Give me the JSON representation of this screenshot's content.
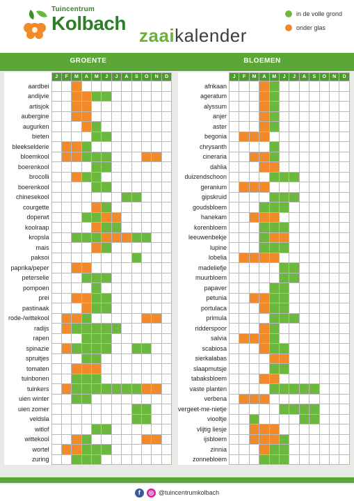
{
  "brand": {
    "small": "Tuincentrum",
    "big": "Kolbach"
  },
  "title": {
    "bold": "zaai",
    "rest": "kalender"
  },
  "legend": [
    {
      "label": "in de volle grond",
      "color": "#6cb83f"
    },
    {
      "label": "onder glas",
      "color": "#f08a2a"
    }
  ],
  "sections": {
    "left_title": "GROENTE",
    "right_title": "BLOEMEN"
  },
  "months": [
    "J",
    "F",
    "M",
    "A",
    "M",
    "J",
    "J",
    "A",
    "S",
    "O",
    "N",
    "D"
  ],
  "groente": [
    {
      "name": "aardbei",
      "cells": "..o........."
    },
    {
      "name": "andijvie",
      "cells": "..oogg......"
    },
    {
      "name": "artisjok",
      "cells": "..oo........"
    },
    {
      "name": "aubergine",
      "cells": "..oo........"
    },
    {
      "name": "augurken",
      "cells": "...og......."
    },
    {
      "name": "bieten",
      "cells": "....gg......"
    },
    {
      "name": "bleekselderie",
      "cells": ".oog........"
    },
    {
      "name": "bloemkool",
      "cells": ".ooggg...oo."
    },
    {
      "name": "boerenkool",
      "cells": "....gg......"
    },
    {
      "name": "brocolli",
      "cells": "..ogg......."
    },
    {
      "name": "boerenkool",
      "cells": "....gg......"
    },
    {
      "name": "chinesekool",
      "cells": ".......gg..."
    },
    {
      "name": "courgette",
      "cells": "....og......"
    },
    {
      "name": "doperwt",
      "cells": "...ggoo....."
    },
    {
      "name": "koolraap",
      "cells": "....ogg....."
    },
    {
      "name": "kropsla",
      "cells": "..gggooogg.."
    },
    {
      "name": "mais",
      "cells": "....og......"
    },
    {
      "name": "paksoi",
      "cells": "........g..."
    },
    {
      "name": "paprika/peper",
      "cells": "..oo........"
    },
    {
      "name": "peterselie",
      "cells": "...ggg......"
    },
    {
      "name": "pompoen",
      "cells": "....g......."
    },
    {
      "name": "prei",
      "cells": "..oogg......"
    },
    {
      "name": "pastinaak",
      "cells": "...ogg......"
    },
    {
      "name": "rode-/wittekool",
      "cells": ".oog.....oo."
    },
    {
      "name": "radijs",
      "cells": ".oggggg....."
    },
    {
      "name": "rapen",
      "cells": "...ggg......"
    },
    {
      "name": "spinazie",
      "cells": ".ogggg..gg.."
    },
    {
      "name": "spruitjes",
      "cells": "...gg......."
    },
    {
      "name": "tomaten",
      "cells": "..ooo......."
    },
    {
      "name": "tuinbonen",
      "cells": "..ggg......."
    },
    {
      "name": "tuinkers",
      "cells": ".ogggggggoo."
    },
    {
      "name": "uien winter",
      "cells": "..gg........"
    },
    {
      "name": "uien zomer",
      "cells": "........gg.."
    },
    {
      "name": "veldsla",
      "cells": "........gg.."
    },
    {
      "name": "witlof",
      "cells": "....gg......"
    },
    {
      "name": "wittekool",
      "cells": "..og.....oo."
    },
    {
      "name": "wortel",
      "cells": ".ooggg......"
    },
    {
      "name": "zuring",
      "cells": "..ggg......."
    }
  ],
  "bloemen": [
    {
      "name": "afrikaan",
      "cells": "...og......."
    },
    {
      "name": "ageratum",
      "cells": "...og......."
    },
    {
      "name": "alyssum",
      "cells": "...og......."
    },
    {
      "name": "anjer",
      "cells": "...og......."
    },
    {
      "name": "aster",
      "cells": "...og......."
    },
    {
      "name": "begonia",
      "cells": ".ooo........"
    },
    {
      "name": "chrysanth",
      "cells": "....g......."
    },
    {
      "name": "cineraria",
      "cells": "..oog......."
    },
    {
      "name": "dahlia",
      "cells": "...oo......."
    },
    {
      "name": "duizendschoon",
      "cells": "....ggg....."
    },
    {
      "name": "geranium",
      "cells": ".ooo........"
    },
    {
      "name": "gipskruid",
      "cells": "....ggg....."
    },
    {
      "name": "goudsbloem",
      "cells": "...ggg......"
    },
    {
      "name": "hanekam",
      "cells": "..ooo......."
    },
    {
      "name": "korenbloem",
      "cells": "...ggg......"
    },
    {
      "name": "leeuwenbekje",
      "cells": "...goo......"
    },
    {
      "name": "lupine",
      "cells": "...ggg......"
    },
    {
      "name": "lobelia",
      "cells": ".oooo......."
    },
    {
      "name": "madeliefje",
      "cells": ".....gg....."
    },
    {
      "name": "muurbloem",
      "cells": ".....gg....."
    },
    {
      "name": "papaver",
      "cells": "....gg......"
    },
    {
      "name": "petunia",
      "cells": "..oogg......"
    },
    {
      "name": "portulaca",
      "cells": "...ogg......"
    },
    {
      "name": "primula",
      "cells": "....ggg....."
    },
    {
      "name": "ridderspoor",
      "cells": "...og......."
    },
    {
      "name": "salvia",
      "cells": ".ooog......."
    },
    {
      "name": "scabiosa",
      "cells": "...ogg......"
    },
    {
      "name": "sierkalabas",
      "cells": "....oo......"
    },
    {
      "name": "slaapmutsje",
      "cells": "....gg......"
    },
    {
      "name": "tabaksbloem",
      "cells": "...oo......."
    },
    {
      "name": "vaste planten",
      "cells": "....ggggg..."
    },
    {
      "name": "verbena",
      "cells": ".ooo........"
    },
    {
      "name": "vergeet-me-nietje",
      "cells": ".....gggg..."
    },
    {
      "name": "viooltje",
      "cells": "..g....gg..."
    },
    {
      "name": "vlijtig liesje",
      "cells": "..ooo......."
    },
    {
      "name": "ijsbloem",
      "cells": "..ooog......"
    },
    {
      "name": "zinnia",
      "cells": "...ogg......"
    },
    {
      "name": "zonnebloem",
      "cells": "...ggg......"
    }
  ],
  "footer": {
    "handle": "@tuincentrumkolbach",
    "icons": [
      "facebook-icon",
      "instagram-icon"
    ]
  }
}
